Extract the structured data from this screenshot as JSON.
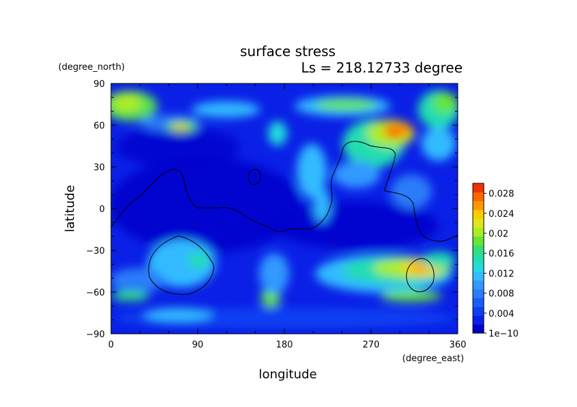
{
  "chart_data": {
    "type": "heatmap",
    "title": "surface stress",
    "subtitle": "Ls = 218.12733 degree",
    "xlabel": "longitude",
    "ylabel": "latitude",
    "x_units": "(degree_east)",
    "y_units": "(degree_north)",
    "xlim": [
      0,
      360
    ],
    "ylim": [
      -90,
      90
    ],
    "x_ticks": [
      "0",
      "90",
      "180",
      "270",
      "360"
    ],
    "y_ticks": [
      "90",
      "60",
      "30",
      "0",
      "−30",
      "−60",
      "−90"
    ],
    "colorbar": {
      "range": [
        0,
        0.03
      ],
      "tick_labels": [
        "1e−10",
        "0.004",
        "0.008",
        "0.012",
        "0.016",
        "0.02",
        "0.024",
        "0.028"
      ],
      "tick_values": [
        0,
        0.004,
        0.008,
        0.012,
        0.016,
        0.02,
        0.024,
        0.028
      ],
      "colors": [
        "#0000cc",
        "#0a20e6",
        "#0f3ff2",
        "#1a5ef7",
        "#2a7df9",
        "#3399ff",
        "#33bbff",
        "#22dddd",
        "#22ddb0",
        "#33dd77",
        "#66e633",
        "#aaee22",
        "#dde81a",
        "#ffcc00",
        "#ff9900",
        "#ff6600",
        "#ee3300"
      ]
    },
    "hotspots": [
      {
        "lon": 300,
        "lat": 58,
        "value": 0.026
      },
      {
        "lon": 310,
        "lat": -43,
        "value": 0.021
      },
      {
        "lon": 70,
        "lat": 58,
        "value": 0.016
      },
      {
        "lon": 5,
        "lat": 70,
        "value": 0.013
      },
      {
        "lon": 210,
        "lat": 73,
        "value": 0.013
      },
      {
        "lon": 160,
        "lat": -65,
        "value": 0.013
      },
      {
        "lon": 20,
        "lat": -62,
        "value": 0.012
      }
    ]
  }
}
